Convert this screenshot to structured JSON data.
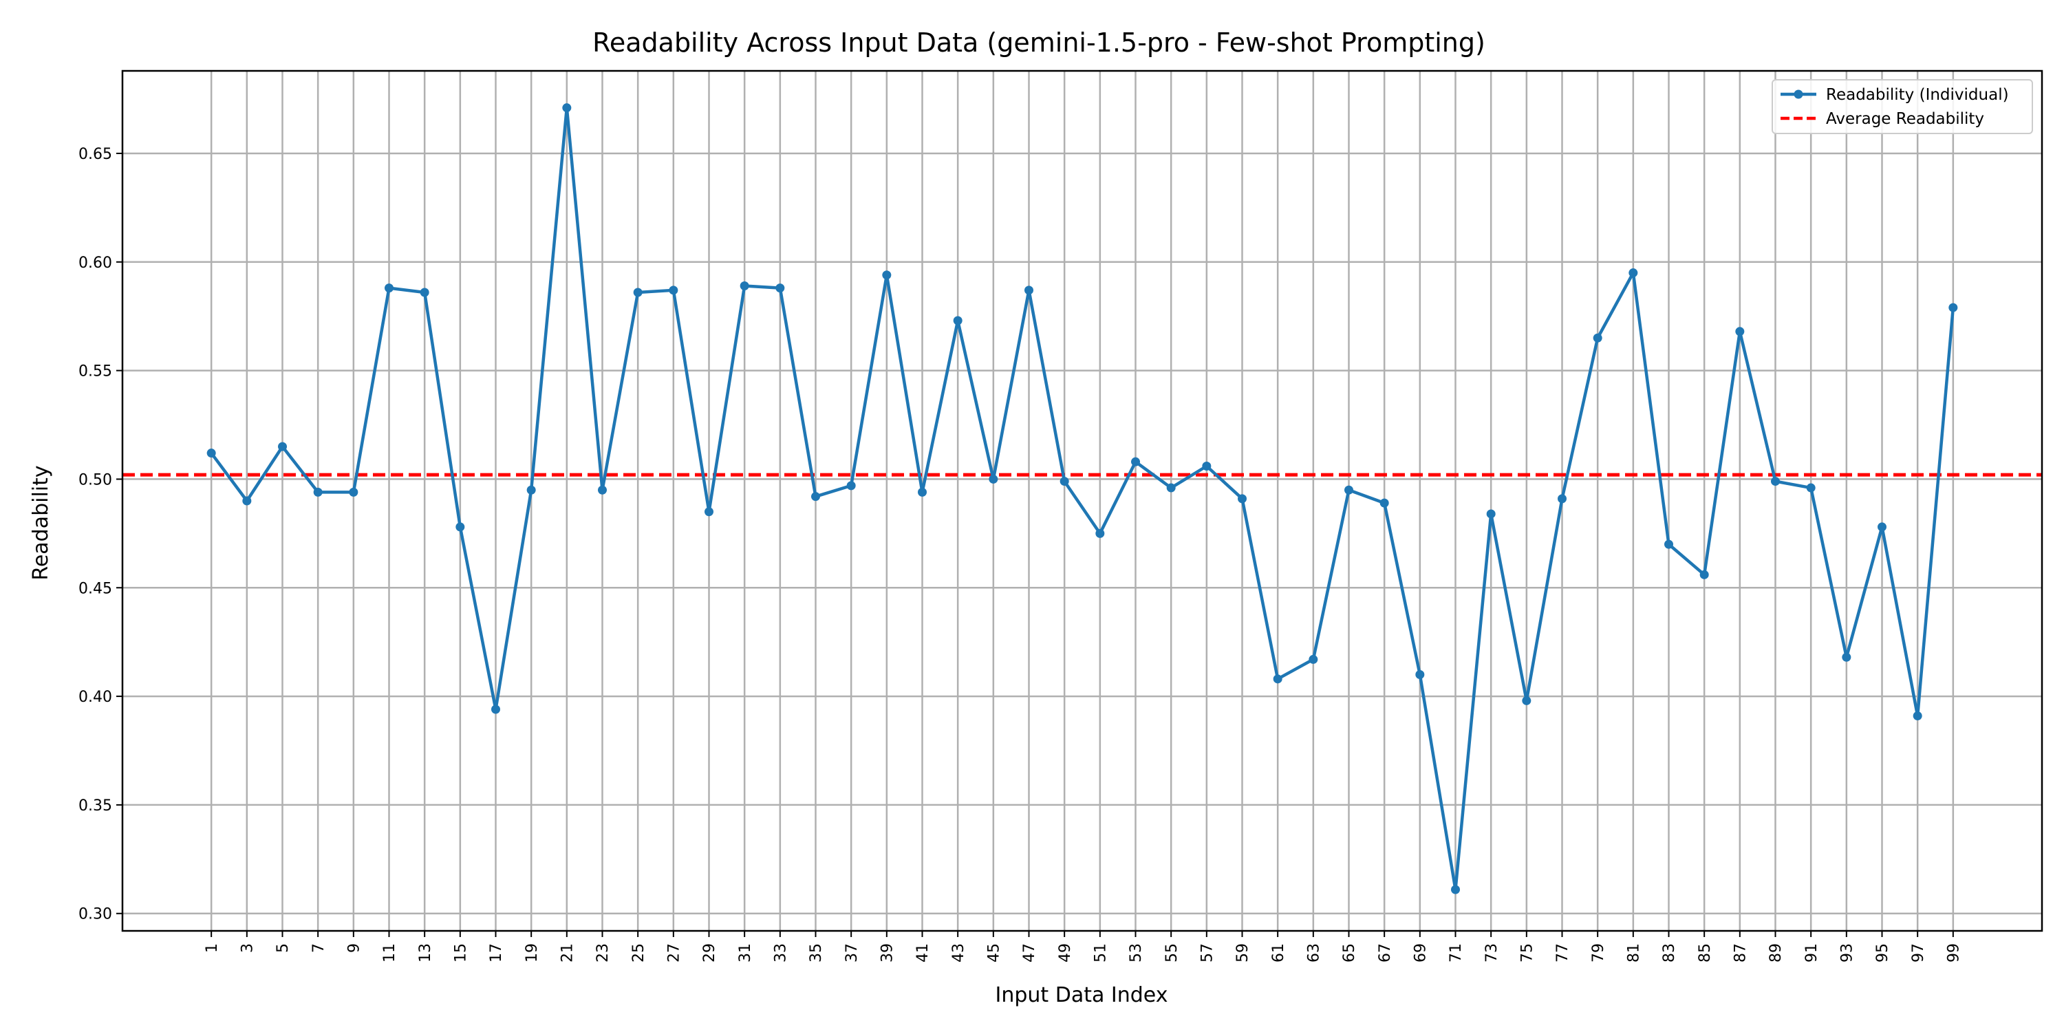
{
  "chart_data": {
    "type": "line",
    "title": "Readability Across Input Data (gemini-1.5-pro - Few-shot Prompting)",
    "xlabel": "Input Data Index",
    "ylabel": "Readability",
    "x": [
      1,
      3,
      5,
      7,
      9,
      11,
      13,
      15,
      17,
      19,
      21,
      23,
      25,
      27,
      29,
      31,
      33,
      35,
      37,
      39,
      41,
      43,
      45,
      47,
      49,
      51,
      53,
      55,
      57,
      59,
      61,
      63,
      65,
      67,
      69,
      71,
      73,
      75,
      77,
      79,
      81,
      83,
      85,
      87,
      89,
      91,
      93,
      95,
      97,
      99
    ],
    "x_tick_labels": [
      "1",
      "3",
      "5",
      "7",
      "9",
      "11",
      "13",
      "15",
      "17",
      "19",
      "21",
      "23",
      "25",
      "27",
      "29",
      "31",
      "33",
      "35",
      "37",
      "39",
      "41",
      "43",
      "45",
      "47",
      "49",
      "51",
      "53",
      "55",
      "57",
      "59",
      "61",
      "63",
      "65",
      "67",
      "69",
      "71",
      "73",
      "75",
      "77",
      "79",
      "81",
      "83",
      "85",
      "87",
      "89",
      "91",
      "93",
      "95",
      "97",
      "99"
    ],
    "xlim": [
      -4,
      104
    ],
    "ylim": [
      0.292,
      0.688
    ],
    "y_ticks": [
      0.3,
      0.35,
      0.4,
      0.45,
      0.5,
      0.55,
      0.6,
      0.65
    ],
    "y_tick_labels": [
      "0.30",
      "0.35",
      "0.40",
      "0.45",
      "0.50",
      "0.55",
      "0.60",
      "0.65"
    ],
    "grid": true,
    "legend_position": "top-right",
    "series": [
      {
        "name": "Readability (Individual)",
        "color": "#1f77b4",
        "style": "line-with-markers",
        "values": [
          0.512,
          0.49,
          0.515,
          0.494,
          0.494,
          0.588,
          0.586,
          0.478,
          0.394,
          0.495,
          0.671,
          0.495,
          0.586,
          0.587,
          0.485,
          0.589,
          0.588,
          0.492,
          0.497,
          0.594,
          0.494,
          0.573,
          0.5,
          0.587,
          0.499,
          0.475,
          0.508,
          0.496,
          0.506,
          0.491,
          0.408,
          0.417,
          0.495,
          0.489,
          0.41,
          0.311,
          0.484,
          0.398,
          0.491,
          0.565,
          0.595,
          0.47,
          0.456,
          0.568,
          0.499,
          0.496,
          0.418,
          0.478,
          0.391,
          0.579
        ]
      },
      {
        "name": "Average Readability",
        "color": "#ff0000",
        "style": "dashed-horizontal",
        "value": 0.502
      }
    ]
  }
}
